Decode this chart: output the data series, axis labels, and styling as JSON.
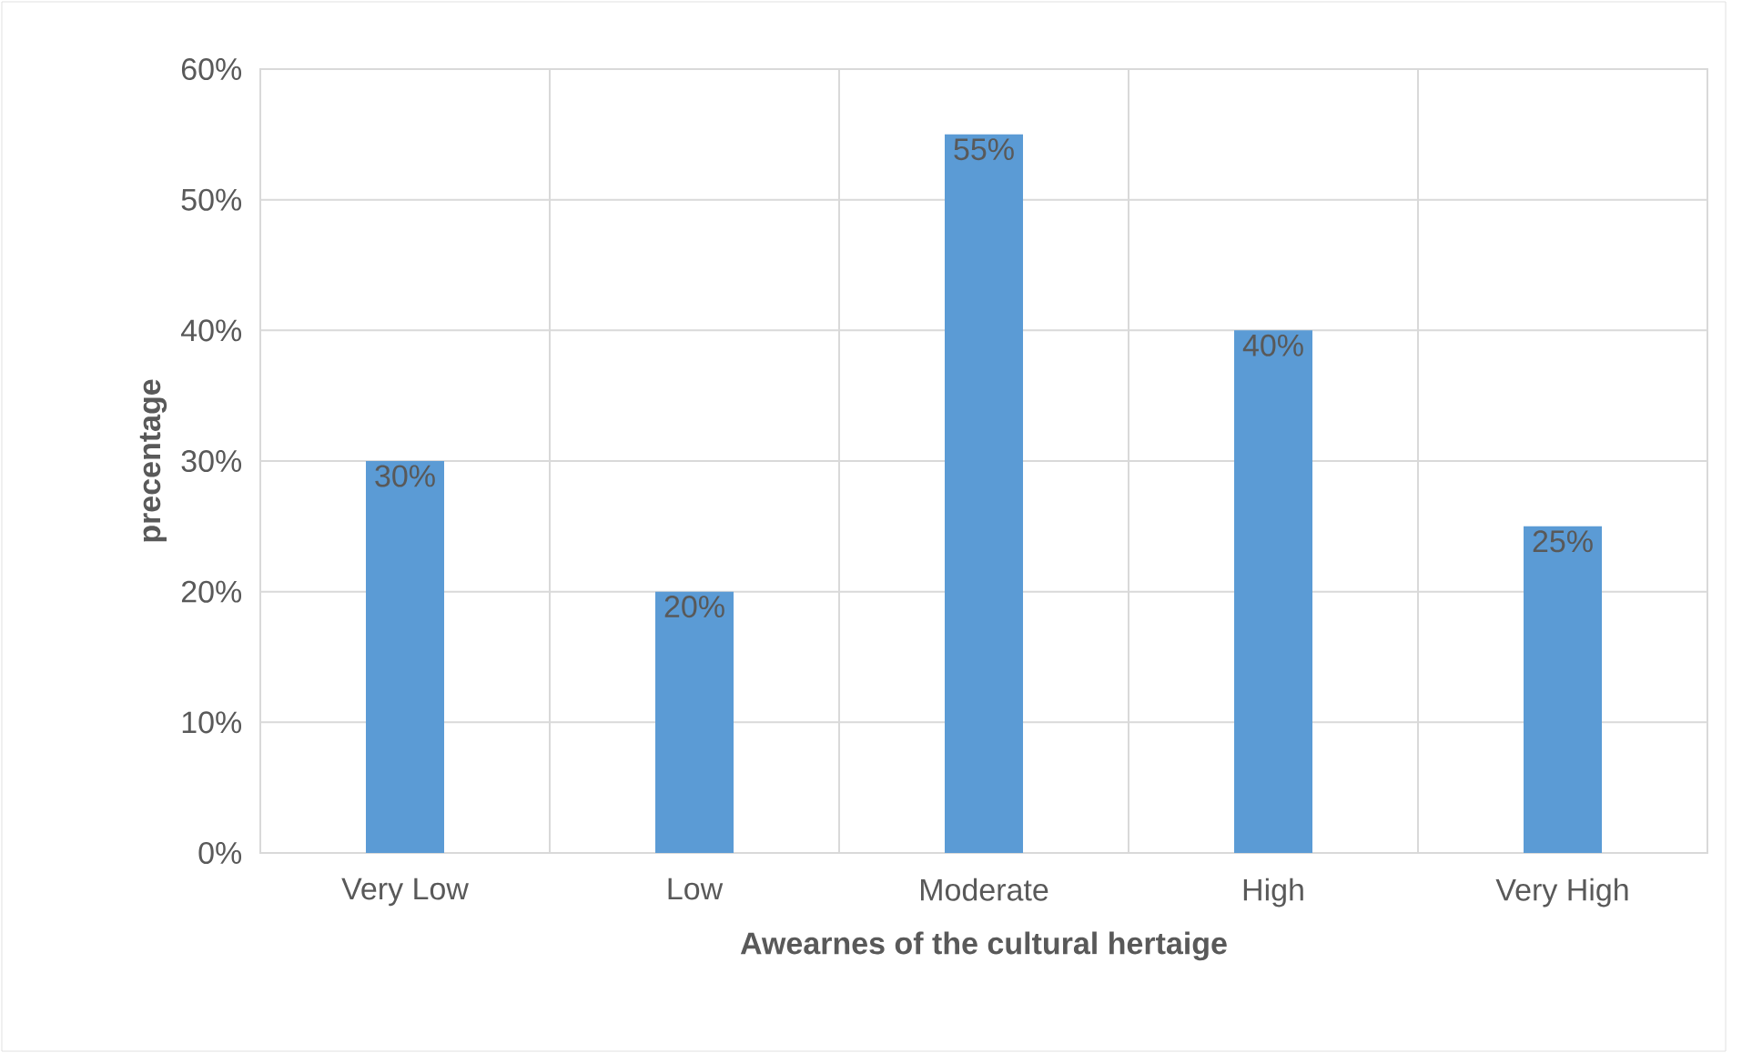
{
  "chart_data": {
    "type": "bar",
    "xlabel": "Awearnes of the cultural hertaige",
    "ylabel": "precentage",
    "categories": [
      "Very Low",
      "Low",
      "Moderate",
      "High",
      "Very High"
    ],
    "values": [
      30,
      20,
      55,
      40,
      25
    ],
    "value_labels": [
      "30%",
      "20%",
      "55%",
      "40%",
      "25%"
    ],
    "color": "#5b9bd5",
    "ylim": [
      0,
      60
    ],
    "yticks": [
      {
        "value": 0,
        "label": "0%"
      },
      {
        "value": 10,
        "label": "10%"
      },
      {
        "value": 20,
        "label": "20%"
      },
      {
        "value": 30,
        "label": "30%"
      },
      {
        "value": 40,
        "label": "40%"
      },
      {
        "value": 50,
        "label": "50%"
      },
      {
        "value": 60,
        "label": "60%"
      }
    ],
    "grid": true
  }
}
